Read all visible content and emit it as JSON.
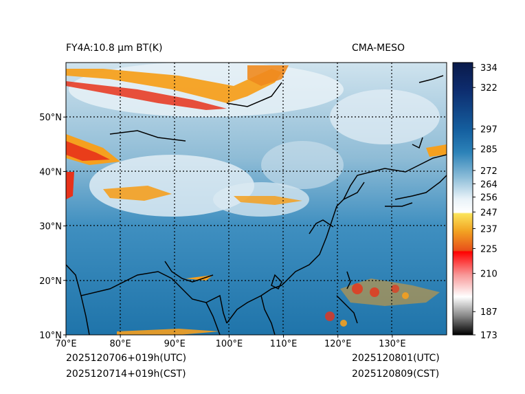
{
  "header": {
    "product": "FY4A:10.8 μm BT(K)",
    "source": "CMA-MESO"
  },
  "footer": {
    "init_utc": "2025120706+019h(UTC)",
    "init_cst": "2025120714+019h(CST)",
    "valid_utc": "2025120801(UTC)",
    "valid_cst": "2025120809(CST)"
  },
  "map": {
    "lon_range": [
      70,
      140
    ],
    "lat_range": [
      10,
      60
    ],
    "lon_ticks": [
      {
        "value": 70,
        "label": "70°E"
      },
      {
        "value": 80,
        "label": "80°E"
      },
      {
        "value": 90,
        "label": "90°E"
      },
      {
        "value": 100,
        "label": "100°E"
      },
      {
        "value": 110,
        "label": "110°E"
      },
      {
        "value": 120,
        "label": "120°E"
      },
      {
        "value": 130,
        "label": "130°E"
      }
    ],
    "lat_ticks": [
      {
        "value": 10,
        "label": "10°N"
      },
      {
        "value": 20,
        "label": "20°N"
      },
      {
        "value": 30,
        "label": "30°N"
      },
      {
        "value": 40,
        "label": "40°N"
      },
      {
        "value": 50,
        "label": "50°N"
      }
    ],
    "colors": {
      "background": "#2a7fb2",
      "cold_cloud": "#f5a01f",
      "very_cold": "#e8321a",
      "coast": "#000000"
    }
  },
  "colorbar": {
    "range": [
      173,
      337
    ],
    "ticks": [
      334,
      322,
      297,
      285,
      272,
      264,
      256,
      247,
      237,
      225,
      210,
      187,
      173
    ]
  }
}
